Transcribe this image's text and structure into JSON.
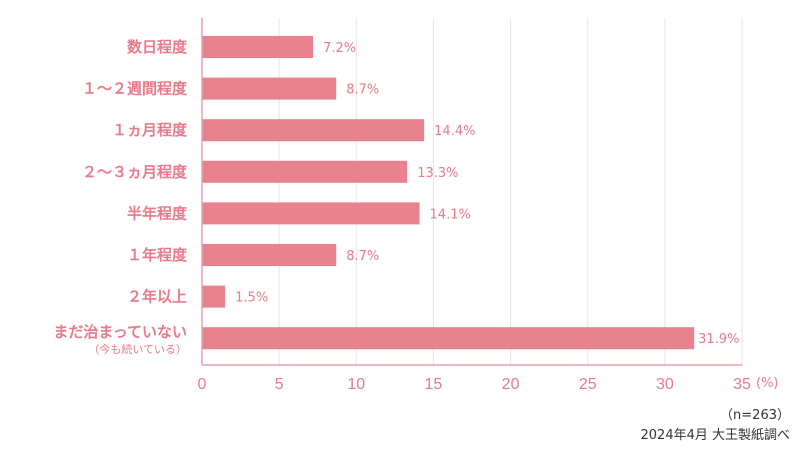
{
  "chart_data": {
    "type": "bar",
    "orientation": "horizontal",
    "categories": [
      "数日程度",
      "１～２週間程度",
      "１ヵ月程度",
      "２～３ヵ月程度",
      "半年程度",
      "１年程度",
      "２年以上",
      "まだ治まっていない"
    ],
    "category_sublabels": {
      "7": "（今も続いている）"
    },
    "values": [
      7.2,
      8.7,
      14.4,
      13.3,
      14.1,
      8.7,
      1.5,
      31.9
    ],
    "value_labels": [
      "7.2%",
      "8.7%",
      "14.4%",
      "13.3%",
      "14.1%",
      "8.7%",
      "1.5%",
      "31.9%"
    ],
    "xlim": [
      0,
      35
    ],
    "xticks": [
      "0",
      "5",
      "10",
      "15",
      "20",
      "25",
      "30",
      "35"
    ],
    "xunit": "(%)",
    "grid": true,
    "colors": {
      "bar": "#e8828f",
      "text": "#e97a8b",
      "grid": "#e6e6e6",
      "axis": "#eea0ab"
    }
  },
  "footnote": {
    "sample": "（n=263）",
    "source": "2024年4月 大王製紙調べ"
  }
}
